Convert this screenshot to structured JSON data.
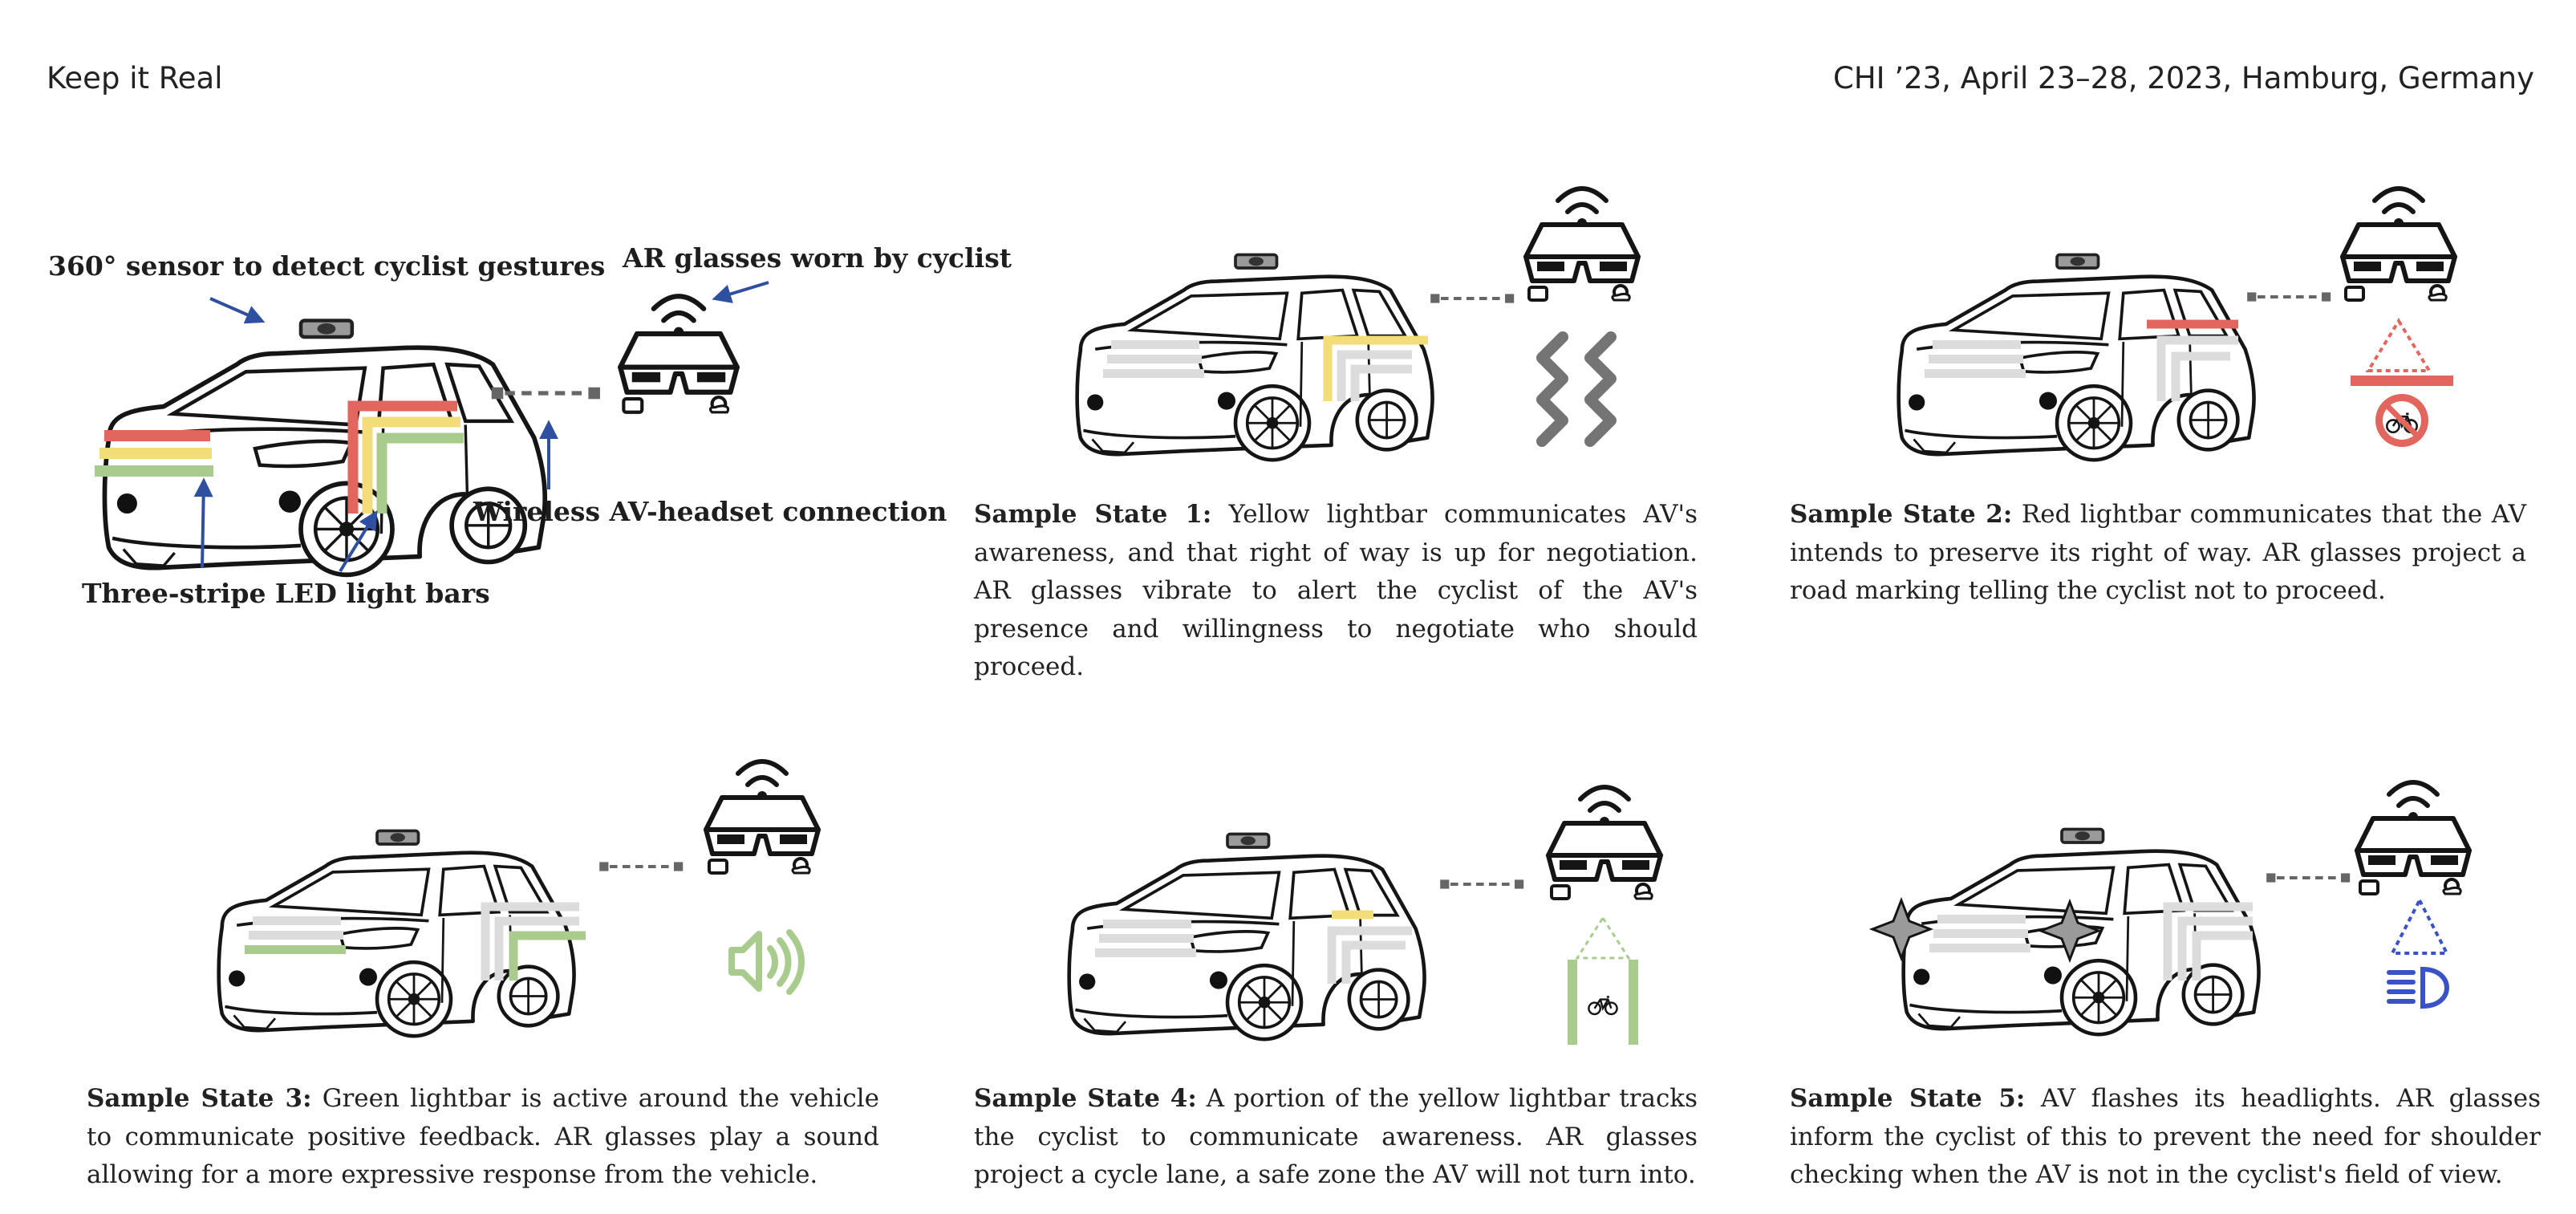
{
  "header": {
    "left": "Keep it Real",
    "right": "CHI ’23, April 23–28, 2023, Hamburg, Germany"
  },
  "overview": {
    "sensor_label": "360° sensor to detect cyclist gestures",
    "glasses_label": "AR glasses worn by cyclist",
    "connection_label": "Wireless AV-headset connection",
    "lightbar_label": "Three-stripe LED light bars"
  },
  "colors": {
    "red": "#e2665e",
    "yellow": "#f3dd78",
    "green": "#a9cc8e",
    "gray_bar": "#dcdcdc",
    "blue": "#3a52c8",
    "arrow": "#2f4fa1",
    "dash": "#666666"
  },
  "icons": [
    "car-icon",
    "ar-glasses-icon",
    "vibration-icon",
    "warning-triangle-icon",
    "no-bicycle-icon",
    "speaker-icon",
    "cycle-lane-icon",
    "bicycle-icon",
    "flash-star-icon",
    "headlight-icon"
  ],
  "states": [
    {
      "title": "Sample State 1:",
      "text": "Yellow lightbar communicates AV's awareness, and that right of way is up for negotiation. AR glasses vibrate to alert the cyclist of the AV's presence and willingness to negotiate who should proceed."
    },
    {
      "title": "Sample State 2:",
      "text": "Red lightbar communicates that the AV intends to preserve its right of way. AR glasses project a road marking telling the cyclist not to proceed."
    },
    {
      "title": "Sample State 3:",
      "text": "Green lightbar is active around the vehicle to communicate positive feedback. AR glasses play a sound allowing for a more expressive response from the vehicle."
    },
    {
      "title": "Sample State 4:",
      "text": "A portion of the yellow lightbar tracks the cyclist to communicate awareness. AR glasses project a cycle lane, a safe zone the AV will not turn into."
    },
    {
      "title": "Sample State 5:",
      "text": "AV flashes its headlights. AR glasses inform the cyclist of this to prevent the need for shoulder checking when the AV is not in the cyclist's field of view."
    }
  ]
}
